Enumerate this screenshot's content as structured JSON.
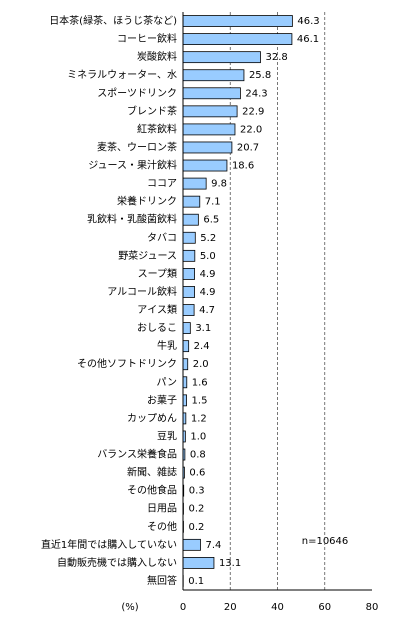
{
  "chart_data": {
    "type": "barh",
    "categories": [
      "日本茶(緑茶、ほうじ茶など)",
      "コーヒー飲料",
      "炭酸飲料",
      "ミネラルウォーター、水",
      "スポーツドリンク",
      "ブレンド茶",
      "紅茶飲料",
      "麦茶、ウーロン茶",
      "ジュース・果汁飲料",
      "ココア",
      "栄養ドリンク",
      "乳飲料・乳酸菌飲料",
      "タバコ",
      "野菜ジュース",
      "スープ類",
      "アルコール飲料",
      "アイス類",
      "おしるこ",
      "牛乳",
      "その他ソフトドリンク",
      "パン",
      "お菓子",
      "カップめん",
      "豆乳",
      "バランス栄養食品",
      "新聞、雑誌",
      "その他食品",
      "日用品",
      "その他",
      "直近1年間では購入していない",
      "自動販売機では購入しない",
      "無回答"
    ],
    "values": [
      46.3,
      46.1,
      32.8,
      25.8,
      24.3,
      22.9,
      22.0,
      20.7,
      18.6,
      9.8,
      7.1,
      6.5,
      5.2,
      5.0,
      4.9,
      4.9,
      4.7,
      3.1,
      2.4,
      2.0,
      1.6,
      1.5,
      1.2,
      1.0,
      0.8,
      0.6,
      0.3,
      0.2,
      0.2,
      7.4,
      13.1,
      0.1
    ],
    "value_labels": [
      "46.3",
      "46.1",
      "32.8",
      "25.8",
      "24.3",
      "22.9",
      "22.0",
      "20.7",
      "18.6",
      "9.8",
      "7.1",
      "6.5",
      "5.2",
      "5.0",
      "4.9",
      "4.9",
      "4.7",
      "3.1",
      "2.4",
      "2.0",
      "1.6",
      "1.5",
      "1.2",
      "1.0",
      "0.8",
      "0.6",
      "0.3",
      "0.2",
      "0.2",
      "7.4",
      "13.1",
      "0.1"
    ],
    "color": "#99ccff",
    "xlim": [
      0,
      80
    ],
    "xticks": [
      0,
      20,
      40,
      60,
      80
    ],
    "x_label": "(%)",
    "annotation": "n=10646",
    "grid": true
  }
}
